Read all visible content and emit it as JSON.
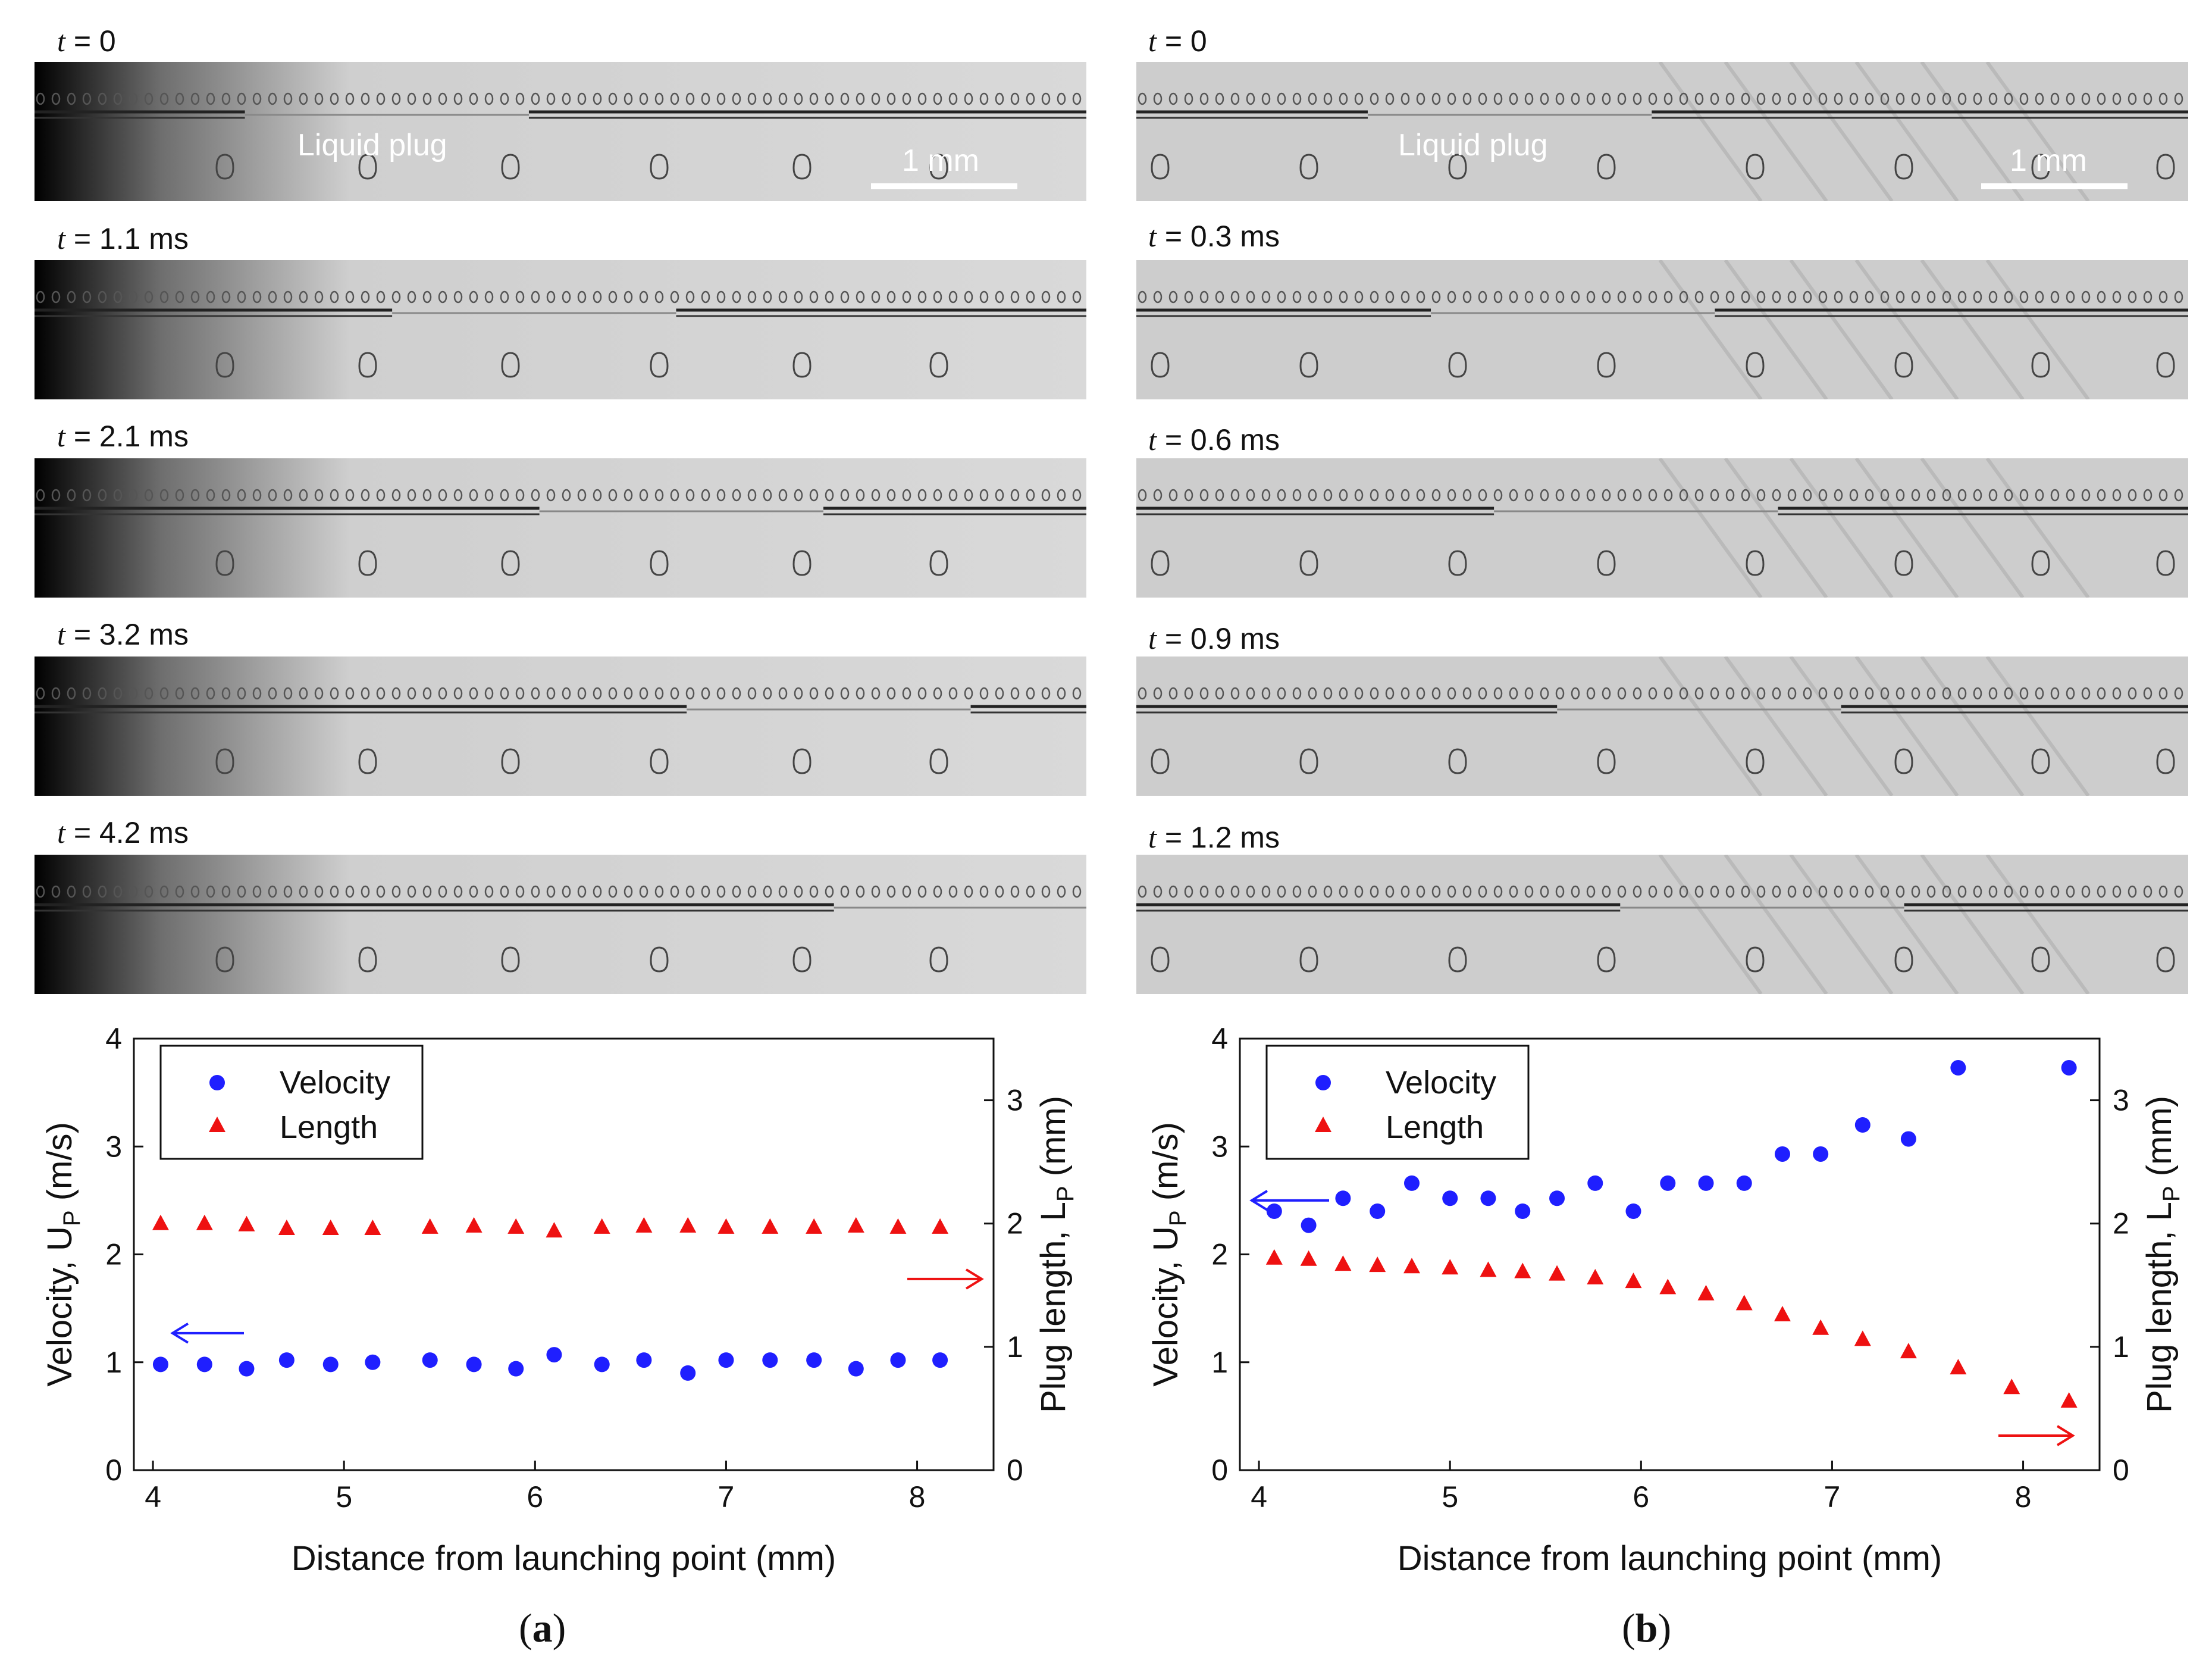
{
  "panels": [
    {
      "id": "a",
      "caption_letter": "a",
      "frames": [
        {
          "t_var": "t",
          "t_value": "= 0"
        },
        {
          "t_var": "t",
          "t_value": "= 1.1 ms"
        },
        {
          "t_var": "t",
          "t_value": "= 2.1 ms"
        },
        {
          "t_var": "t",
          "t_value": "= 3.2 ms"
        },
        {
          "t_var": "t",
          "t_value": "= 4.2 ms"
        }
      ],
      "plug_label": "Liquid plug",
      "scale_label": "1 mm",
      "plug_fraction_start": 0.2,
      "plug_step": 0.14
    },
    {
      "id": "b",
      "caption_letter": "b",
      "frames": [
        {
          "t_var": "t",
          "t_value": "= 0"
        },
        {
          "t_var": "t",
          "t_value": "= 0.3 ms"
        },
        {
          "t_var": "t",
          "t_value": "= 0.6 ms"
        },
        {
          "t_var": "t",
          "t_value": "= 0.9 ms"
        },
        {
          "t_var": "t",
          "t_value": "= 1.2 ms"
        }
      ],
      "plug_label": "Liquid plug",
      "scale_label": "1 mm",
      "plug_fraction_start": 0.22,
      "plug_step": 0.06
    }
  ],
  "colors": {
    "velocity": "#1f1fff",
    "length": "#ee1111",
    "axis": "#111111"
  },
  "chart_data": [
    {
      "type": "scatter",
      "xlabel": "Distance from launching point (mm)",
      "ylabel_left": "Velocity, U",
      "ylabel_left_sub": "P",
      "ylabel_left_unit": " (m/s)",
      "ylabel_right": "Plug length, L",
      "ylabel_right_sub": "P",
      "ylabel_right_unit": " (mm)",
      "xlim": [
        3.9,
        8.4
      ],
      "xticks": [
        4,
        5,
        6,
        7,
        8
      ],
      "ylim_left": [
        0,
        4
      ],
      "yticks_left": [
        0,
        1,
        2,
        3,
        4
      ],
      "ylim_right": [
        0,
        3.5
      ],
      "yticks_right": [
        0,
        1,
        2,
        3
      ],
      "legend": [
        "Velocity",
        "Length"
      ],
      "legend_position": "top-left",
      "series": [
        {
          "name": "Velocity",
          "axis": "left",
          "marker": "circle",
          "x": [
            4.04,
            4.27,
            4.49,
            4.7,
            4.93,
            5.15,
            5.45,
            5.68,
            5.9,
            6.1,
            6.35,
            6.57,
            6.8,
            7.0,
            7.23,
            7.46,
            7.68,
            7.9,
            8.12
          ],
          "y": [
            0.98,
            0.98,
            0.94,
            1.02,
            0.98,
            1.0,
            1.02,
            0.98,
            0.94,
            1.07,
            0.98,
            1.02,
            0.9,
            1.02,
            1.02,
            1.02,
            0.94,
            1.02,
            1.02
          ]
        },
        {
          "name": "Length",
          "axis": "right",
          "marker": "triangle",
          "x": [
            4.04,
            4.27,
            4.49,
            4.7,
            4.93,
            5.15,
            5.45,
            5.68,
            5.9,
            6.1,
            6.35,
            6.57,
            6.8,
            7.0,
            7.23,
            7.46,
            7.68,
            7.9,
            8.12
          ],
          "y": [
            2.0,
            2.0,
            1.99,
            1.96,
            1.96,
            1.96,
            1.97,
            1.98,
            1.97,
            1.94,
            1.97,
            1.98,
            1.98,
            1.97,
            1.97,
            1.97,
            1.98,
            1.97,
            1.97
          ]
        }
      ]
    },
    {
      "type": "scatter",
      "xlabel": "Distance from launching point (mm)",
      "ylabel_left": "Velocity, U",
      "ylabel_left_sub": "P",
      "ylabel_left_unit": " (m/s)",
      "ylabel_right": "Plug length, L",
      "ylabel_right_sub": "P",
      "ylabel_right_unit": " (mm)",
      "xlim": [
        3.9,
        8.4
      ],
      "xticks": [
        4,
        5,
        6,
        7,
        8
      ],
      "ylim_left": [
        0,
        4
      ],
      "yticks_left": [
        0,
        1,
        2,
        3,
        4
      ],
      "ylim_right": [
        0,
        3.5
      ],
      "yticks_right": [
        0,
        1,
        2,
        3
      ],
      "legend": [
        "Velocity",
        "Length"
      ],
      "legend_position": "top-left",
      "series": [
        {
          "name": "Velocity",
          "axis": "left",
          "marker": "circle",
          "x": [
            4.08,
            4.26,
            4.44,
            4.62,
            4.8,
            5.0,
            5.2,
            5.38,
            5.56,
            5.76,
            5.96,
            6.14,
            6.34,
            6.54,
            6.74,
            6.94,
            7.16,
            7.4,
            7.66,
            8.24
          ],
          "y": [
            2.4,
            2.27,
            2.52,
            2.4,
            2.66,
            2.52,
            2.52,
            2.4,
            2.52,
            2.66,
            2.4,
            2.66,
            2.66,
            2.66,
            2.93,
            2.93,
            3.2,
            3.07,
            3.73,
            3.73
          ]
        },
        {
          "name": "Length",
          "axis": "right",
          "marker": "triangle",
          "x": [
            4.08,
            4.26,
            4.44,
            4.62,
            4.8,
            5.0,
            5.2,
            5.38,
            5.56,
            5.76,
            5.96,
            6.14,
            6.34,
            6.54,
            6.74,
            6.94,
            7.16,
            7.4,
            7.66,
            7.94,
            8.24
          ],
          "y": [
            1.72,
            1.71,
            1.67,
            1.66,
            1.65,
            1.64,
            1.62,
            1.61,
            1.59,
            1.56,
            1.53,
            1.48,
            1.43,
            1.35,
            1.26,
            1.15,
            1.06,
            0.96,
            0.83,
            0.67,
            0.56
          ]
        }
      ]
    }
  ]
}
